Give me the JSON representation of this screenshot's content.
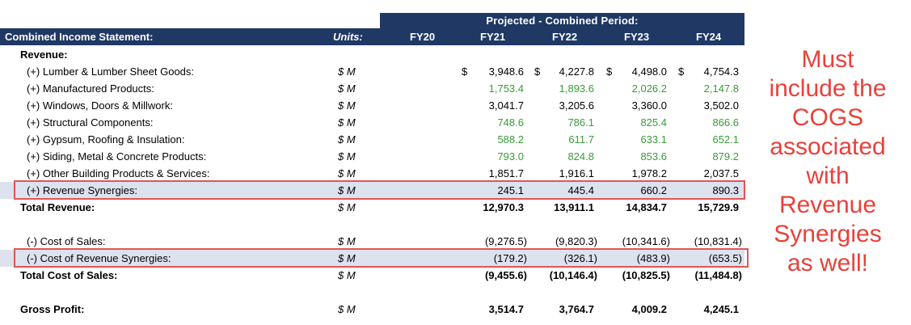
{
  "header": {
    "projected_label": "Projected - Combined Period:",
    "title": "Combined Income Statement:",
    "units_label": "Units:",
    "years": [
      "FY20",
      "FY21",
      "FY22",
      "FY23",
      "FY24"
    ]
  },
  "revenue": {
    "section_label": "Revenue:",
    "rows": [
      {
        "label": "(+) Lumber & Lumber Sheet Goods:",
        "unit": "$ M",
        "currency": "$",
        "values": [
          "3,948.6",
          "4,227.8",
          "4,498.0",
          "4,754.3"
        ]
      },
      {
        "label": "(+) Manufactured Products:",
        "unit": "$ M",
        "values": [
          "1,753.4",
          "1,893.6",
          "2,026.2",
          "2,147.8"
        ]
      },
      {
        "label": "(+) Windows, Doors & Millwork:",
        "unit": "$ M",
        "values": [
          "3,041.7",
          "3,205.6",
          "3,360.0",
          "3,502.0"
        ]
      },
      {
        "label": "(+) Structural Components:",
        "unit": "$ M",
        "values": [
          "748.6",
          "786.1",
          "825.4",
          "866.6"
        ]
      },
      {
        "label": "(+) Gypsum, Roofing & Insulation:",
        "unit": "$ M",
        "values": [
          "588.2",
          "611.7",
          "633.1",
          "652.1"
        ]
      },
      {
        "label": "(+) Siding, Metal & Concrete Products:",
        "unit": "$ M",
        "values": [
          "793.0",
          "824.8",
          "853.6",
          "879.2"
        ]
      },
      {
        "label": "(+) Other Building Products & Services:",
        "unit": "$ M",
        "values": [
          "1,851.7",
          "1,916.1",
          "1,978.2",
          "2,037.5"
        ]
      },
      {
        "label": "(+) Revenue Synergies:",
        "unit": "$ M",
        "values": [
          "245.1",
          "445.4",
          "660.2",
          "890.3"
        ]
      }
    ],
    "total": {
      "label": "Total Revenue:",
      "unit": "$ M",
      "values": [
        "12,970.3",
        "13,911.1",
        "14,834.7",
        "15,729.9"
      ]
    }
  },
  "cost": {
    "rows": [
      {
        "label": "(-) Cost of Sales:",
        "unit": "$ M",
        "values": [
          "(9,276.5)",
          "(9,820.3)",
          "(10,341.6)",
          "(10,831.4)"
        ]
      },
      {
        "label": "(-) Cost of Revenue Synergies:",
        "unit": "$ M",
        "values": [
          "(179.2)",
          "(326.1)",
          "(483.9)",
          "(653.5)"
        ]
      }
    ],
    "total": {
      "label": "Total Cost of Sales:",
      "unit": "$ M",
      "values": [
        "(9,455.6)",
        "(10,146.4)",
        "(10,825.5)",
        "(11,484.8)"
      ]
    }
  },
  "gross_profit": {
    "label": "Gross Profit:",
    "unit": "$ M",
    "values": [
      "3,514.7",
      "3,764.7",
      "4,009.2",
      "4,245.1"
    ]
  },
  "annotation": {
    "lines": [
      "Must",
      "include the",
      "COGS",
      "associated",
      "with",
      "Revenue",
      "Synergies",
      "as well!"
    ],
    "color": "#e8413a"
  },
  "colors": {
    "header_bg": "#1f3864",
    "green": "#3a9a3a",
    "highlight_border": "#e05555",
    "row_shade": "#dde2ef"
  }
}
